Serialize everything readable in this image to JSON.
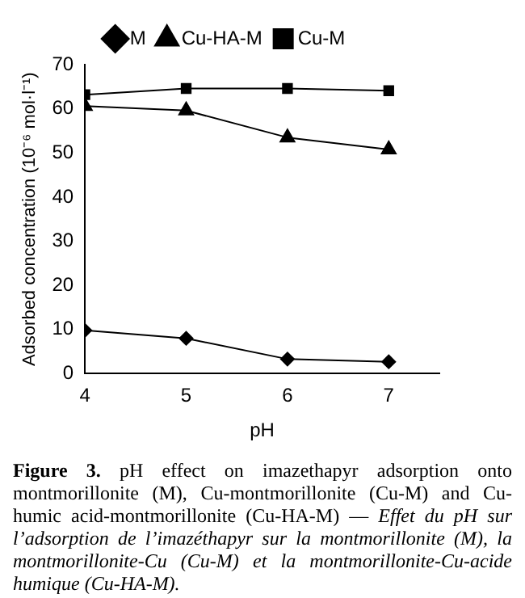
{
  "chart_data": {
    "type": "line",
    "xlabel": "pH",
    "ylabel": "Adsorbed concentration (10⁻⁶ mol·l⁻¹)",
    "x": [
      4,
      5,
      6,
      7
    ],
    "xlim": [
      4,
      7.5
    ],
    "xticks": [
      4,
      5,
      6,
      7
    ],
    "ylim": [
      0,
      70
    ],
    "yticks": [
      0,
      10,
      20,
      30,
      40,
      50,
      60,
      70
    ],
    "grid": false,
    "legend": "top",
    "line_style": "solid",
    "series": [
      {
        "name": "M",
        "color": "#000000",
        "marker": "diamond",
        "values": [
          9.8,
          8.0,
          3.3,
          2.7
        ]
      },
      {
        "name": "Cu-HA-M",
        "color": "#000000",
        "marker": "triangle",
        "values": [
          60.6,
          59.6,
          53.5,
          50.8
        ]
      },
      {
        "name": "Cu-M",
        "color": "#000000",
        "marker": "square",
        "values": [
          63.2,
          64.6,
          64.6,
          64.1
        ]
      }
    ],
    "annotations": [
      "Figure 3.",
      "pH effect on imazethapyr adsorption onto montmorillonite (M), Cu-montmorillonite (Cu-M) and Cu-humic acid-montmorillonite (Cu-HA-M) — ",
      "Effet du pH sur l’adsorption de l’imazéthapyr sur la montmorillonite (M), la montmorillonite-Cu (Cu-M) et la montmorillonite-Cu-acide humique (Cu-HA-M)."
    ]
  }
}
